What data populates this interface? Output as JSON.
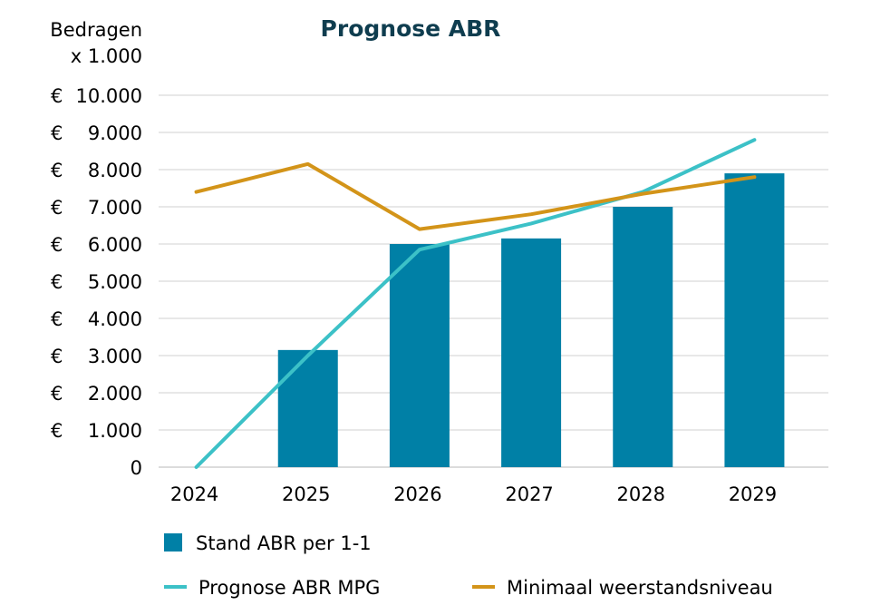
{
  "chart_data": {
    "type": "bar",
    "title": "Prognose ABR",
    "ylabel_line1": "Bedragen",
    "ylabel_line2": "x 1.000",
    "categories": [
      "2024",
      "2025",
      "2026",
      "2027",
      "2028",
      "2029"
    ],
    "ylim": [
      0,
      10000
    ],
    "yticks": [
      {
        "value": 0,
        "currency": "",
        "label": "0"
      },
      {
        "value": 1000,
        "currency": "€",
        "label": "1.000"
      },
      {
        "value": 2000,
        "currency": "€",
        "label": "2.000"
      },
      {
        "value": 3000,
        "currency": "€",
        "label": "3.000"
      },
      {
        "value": 4000,
        "currency": "€",
        "label": "4.000"
      },
      {
        "value": 5000,
        "currency": "€",
        "label": "5.000"
      },
      {
        "value": 6000,
        "currency": "€",
        "label": "6.000"
      },
      {
        "value": 7000,
        "currency": "€",
        "label": "7.000"
      },
      {
        "value": 8000,
        "currency": "€",
        "label": "8.000"
      },
      {
        "value": 9000,
        "currency": "€",
        "label": "9.000"
      },
      {
        "value": 10000,
        "currency": "€",
        "label": "10.000"
      }
    ],
    "grid": true,
    "legend_position": "bottom",
    "series": [
      {
        "name": "Stand ABR per 1-1",
        "kind": "bar",
        "color": "#0080a6",
        "values": [
          0,
          3150,
          6000,
          6150,
          7000,
          7900
        ]
      },
      {
        "name": "Prognose ABR MPG",
        "kind": "line",
        "color": "#3cc1c7",
        "values": [
          0,
          3000,
          5850,
          6550,
          7400,
          8800
        ]
      },
      {
        "name": "Minimaal weerstandsniveau",
        "kind": "line",
        "color": "#d39419",
        "values": [
          7400,
          8150,
          6400,
          6800,
          7350,
          7800
        ]
      }
    ]
  }
}
